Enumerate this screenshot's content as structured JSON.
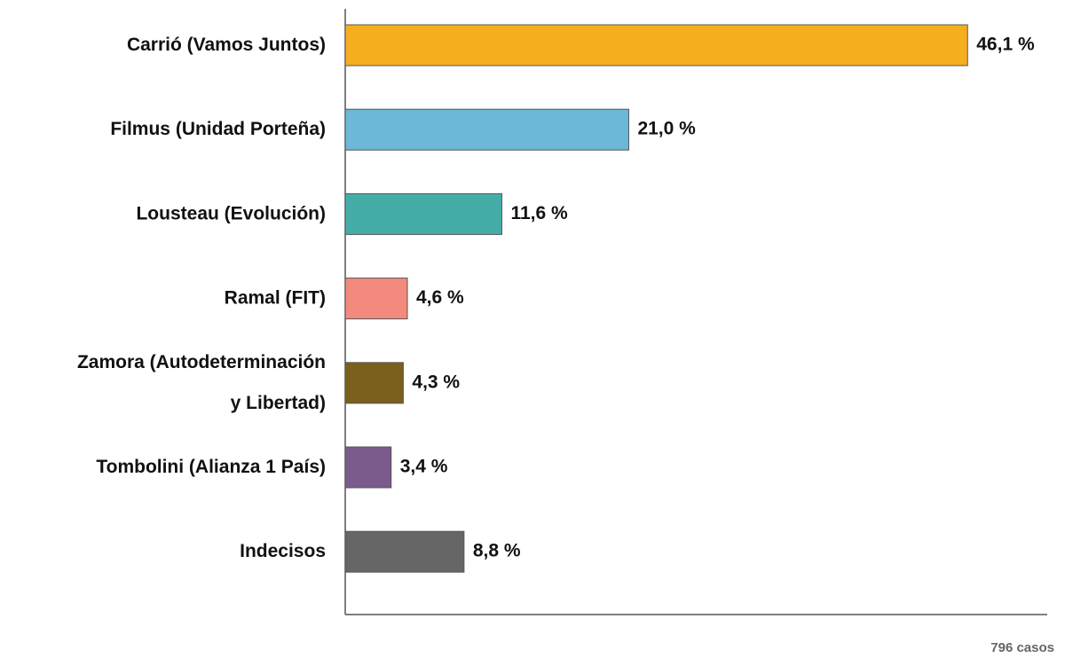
{
  "chart_data": {
    "type": "barh",
    "categories": [
      "Carrió (Vamos Juntos)",
      "Filmus (Unidad Porteña)",
      "Lousteau  (Evolución)",
      "Ramal (FIT)",
      "Zamora  (Autodeterminación\ny Libertad)",
      "Tombolini (Alianza 1 País)",
      "Indecisos"
    ],
    "values": [
      46.1,
      21.0,
      11.6,
      4.6,
      4.3,
      3.4,
      8.8
    ],
    "value_labels": [
      "46,1 %",
      "21,0 %",
      "11,6 %",
      "4,6 %",
      "4,3 %",
      "3,4 %",
      "8,8 %"
    ],
    "colors": [
      "#f5ae1e",
      "#6bb8d9",
      "#45ada8",
      "#f28a7e",
      "#7a601c",
      "#7b5a8c",
      "#666666"
    ],
    "xlim": [
      0,
      52
    ],
    "note": "796 casos"
  }
}
